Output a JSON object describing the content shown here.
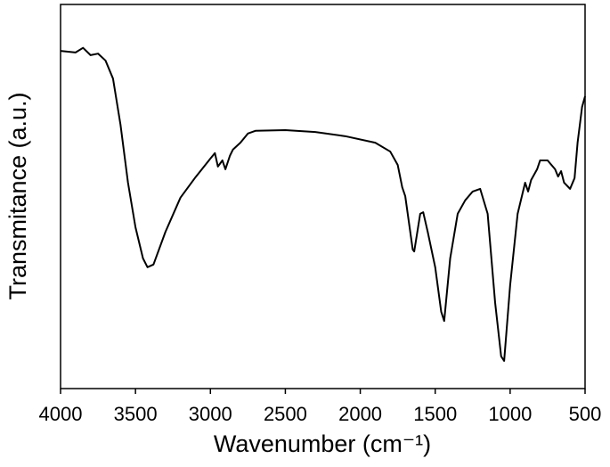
{
  "chart_data": {
    "type": "line",
    "xlabel": "Wavenumber (cm⁻¹)",
    "ylabel": "Transmitance (a.u.)",
    "color": "#000000",
    "xlim": [
      4000,
      500
    ],
    "ylim": [
      0,
      100
    ],
    "xticks": [
      4000,
      3500,
      3000,
      2500,
      2000,
      1500,
      1000,
      500
    ],
    "x": [
      4000,
      3900,
      3850,
      3800,
      3750,
      3700,
      3650,
      3600,
      3550,
      3500,
      3450,
      3420,
      3380,
      3300,
      3200,
      3100,
      3000,
      2970,
      2950,
      2920,
      2900,
      2870,
      2850,
      2800,
      2750,
      2700,
      2500,
      2300,
      2100,
      1900,
      1800,
      1750,
      1720,
      1700,
      1650,
      1640,
      1600,
      1580,
      1550,
      1500,
      1460,
      1440,
      1400,
      1350,
      1300,
      1250,
      1200,
      1150,
      1100,
      1060,
      1040,
      1000,
      950,
      900,
      880,
      860,
      820,
      800,
      750,
      700,
      680,
      660,
      640,
      600,
      570,
      550,
      520,
      500
    ],
    "values": [
      87.9,
      87.5,
      88.7,
      86.8,
      87.2,
      85.4,
      80.7,
      68.7,
      53.6,
      42.0,
      33.9,
      31.6,
      32.3,
      40.8,
      49.7,
      55.0,
      59.9,
      61.3,
      57.8,
      59.4,
      57.1,
      60.6,
      62.2,
      64.0,
      66.4,
      67.1,
      67.3,
      66.8,
      65.7,
      64.0,
      61.7,
      58.2,
      52.4,
      50.1,
      36.2,
      35.7,
      45.5,
      45.9,
      40.8,
      31.6,
      20.0,
      17.6,
      33.9,
      45.5,
      49.0,
      51.3,
      52.0,
      45.5,
      22.3,
      8.4,
      7.2,
      26.9,
      45.5,
      53.6,
      51.3,
      54.3,
      57.1,
      59.4,
      59.4,
      57.1,
      55.2,
      56.6,
      53.6,
      52.0,
      54.8,
      64.0,
      73.3,
      76.1
    ]
  }
}
